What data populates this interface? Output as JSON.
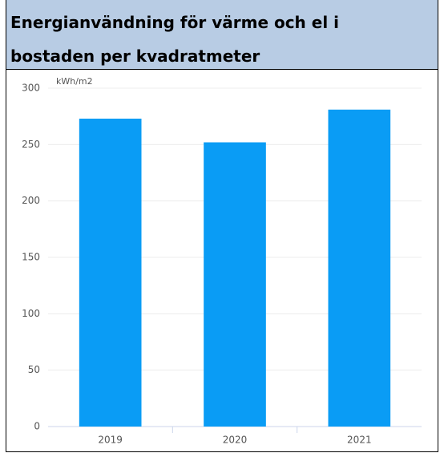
{
  "chart_data": {
    "type": "bar",
    "title": "Energianvändning för värme och el i bostaden per kvadratmeter",
    "y_unit": "kWh/m2",
    "categories": [
      "2019",
      "2020",
      "2021"
    ],
    "values": [
      273,
      252,
      281
    ],
    "color": "#0a9cf5",
    "ylim": [
      0,
      300
    ],
    "yticks": [
      0,
      50,
      100,
      150,
      200,
      250,
      300
    ],
    "grid": true
  }
}
